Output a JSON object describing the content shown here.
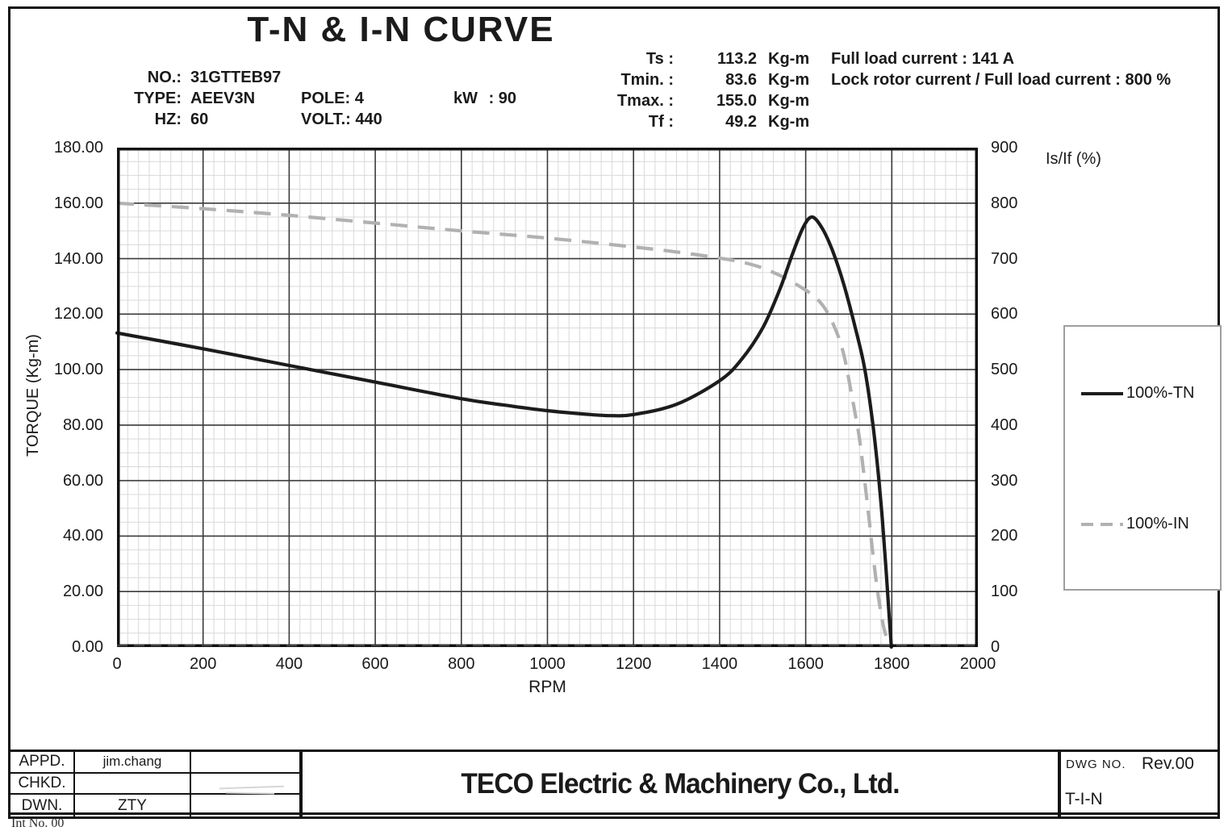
{
  "page_title": "T-N & I-N  CURVE",
  "specs": {
    "no": {
      "label": "NO.:",
      "value": "31GTTEB97"
    },
    "type": {
      "label": "TYPE:",
      "value": "AEEV3N"
    },
    "hz": {
      "label": "HZ:",
      "value": "60"
    },
    "pole": {
      "label": "POLE:",
      "value": "4"
    },
    "volt": {
      "label": "VOLT.:",
      "value": "440"
    },
    "kw": {
      "label": "kW",
      "sep": ":",
      "value": "90"
    }
  },
  "ratings": {
    "rows": [
      {
        "label": "Ts :",
        "value": "113.2",
        "unit": "Kg-m",
        "note": "Full load current : 141 A"
      },
      {
        "label": "Tmin. :",
        "value": "83.6",
        "unit": "Kg-m",
        "note": "Lock rotor current / Full load current : 800 %"
      },
      {
        "label": "Tmax. :",
        "value": "155.0",
        "unit": "Kg-m",
        "note": ""
      },
      {
        "label": "Tf :",
        "value": "49.2",
        "unit": "Kg-m",
        "note": ""
      }
    ]
  },
  "chart_data": {
    "type": "line",
    "title": "T-N & I-N CURVE",
    "xlabel": "RPM",
    "ylabel_left": "TORQUE (Kg-m)",
    "ylabel_right": "Is/If (%)",
    "xlim": [
      0,
      2000
    ],
    "ylim_left": [
      0,
      180
    ],
    "ylim_right": [
      0,
      900
    ],
    "x_tick_step": 200,
    "y_left_tick_step": 20,
    "y_right_tick_step": 100,
    "x_ticks": [
      "0",
      "200",
      "400",
      "600",
      "800",
      "1000",
      "1200",
      "1400",
      "1600",
      "1800",
      "2000"
    ],
    "y_left_ticks": [
      "180.00",
      "160.00",
      "140.00",
      "120.00",
      "100.00",
      "80.00",
      "60.00",
      "40.00",
      "20.00",
      "0.00"
    ],
    "y_right_ticks": [
      "900",
      "800",
      "700",
      "600",
      "500",
      "400",
      "300",
      "200",
      "100",
      "0"
    ],
    "grid": {
      "major_x_step": 200,
      "major_y_step": 20,
      "minor_x_step": 25,
      "minor_y_step": 5,
      "major_color": "#3a3a3a",
      "minor_color": "#d9d9d9"
    },
    "legend": {
      "position": "right",
      "entries": [
        {
          "label": "100%-TN",
          "style": "solid",
          "color": "#1c1c1c"
        },
        {
          "label": "100%-IN",
          "style": "dashed",
          "color": "#b1b1b1"
        }
      ]
    },
    "series": [
      {
        "name": "100%-TN",
        "axis": "left",
        "style": "solid",
        "color": "#1c1c1c",
        "points": [
          [
            0,
            113.2
          ],
          [
            200,
            107.5
          ],
          [
            400,
            101.5
          ],
          [
            600,
            95.5
          ],
          [
            800,
            89.5
          ],
          [
            900,
            87.2
          ],
          [
            1000,
            85.2
          ],
          [
            1100,
            83.8
          ],
          [
            1150,
            83.4
          ],
          [
            1200,
            83.8
          ],
          [
            1300,
            87.5
          ],
          [
            1400,
            96
          ],
          [
            1450,
            103.5
          ],
          [
            1500,
            115
          ],
          [
            1540,
            129
          ],
          [
            1570,
            142
          ],
          [
            1595,
            151.5
          ],
          [
            1615,
            155
          ],
          [
            1638,
            151
          ],
          [
            1662,
            143
          ],
          [
            1688,
            131
          ],
          [
            1712,
            117
          ],
          [
            1735,
            102
          ],
          [
            1753,
            84
          ],
          [
            1767,
            65
          ],
          [
            1778,
            46
          ],
          [
            1787,
            27
          ],
          [
            1794,
            11
          ],
          [
            1799,
            0
          ]
        ]
      },
      {
        "name": "100%-IN",
        "axis": "right",
        "style": "dashed",
        "color": "#b1b1b1",
        "points": [
          [
            0,
            800
          ],
          [
            200,
            790
          ],
          [
            400,
            778
          ],
          [
            600,
            764
          ],
          [
            800,
            750
          ],
          [
            1000,
            737
          ],
          [
            1200,
            721
          ],
          [
            1300,
            712
          ],
          [
            1400,
            701
          ],
          [
            1450,
            694
          ],
          [
            1500,
            683
          ],
          [
            1550,
            666
          ],
          [
            1590,
            648
          ],
          [
            1620,
            632
          ],
          [
            1645,
            610
          ],
          [
            1665,
            580
          ],
          [
            1680,
            550
          ],
          [
            1692,
            515
          ],
          [
            1705,
            462
          ],
          [
            1715,
            420
          ],
          [
            1725,
            375
          ],
          [
            1737,
            300
          ],
          [
            1748,
            225
          ],
          [
            1758,
            155
          ],
          [
            1768,
            95
          ],
          [
            1780,
            40
          ],
          [
            1790,
            12
          ],
          [
            1798,
            0
          ]
        ]
      }
    ]
  },
  "title_block": {
    "left_table": {
      "rows": [
        [
          "APPD.",
          "jim.chang",
          ""
        ],
        [
          "CHKD.",
          "",
          ""
        ],
        [
          "DWN.",
          "ZTY",
          ""
        ]
      ]
    },
    "company": "TECO Electric & Machinery Co., Ltd.",
    "dwg": {
      "label": "DWG NO.",
      "rev": "Rev.00",
      "number": "T-I-N"
    },
    "clipped_note": "Int No. 00"
  }
}
